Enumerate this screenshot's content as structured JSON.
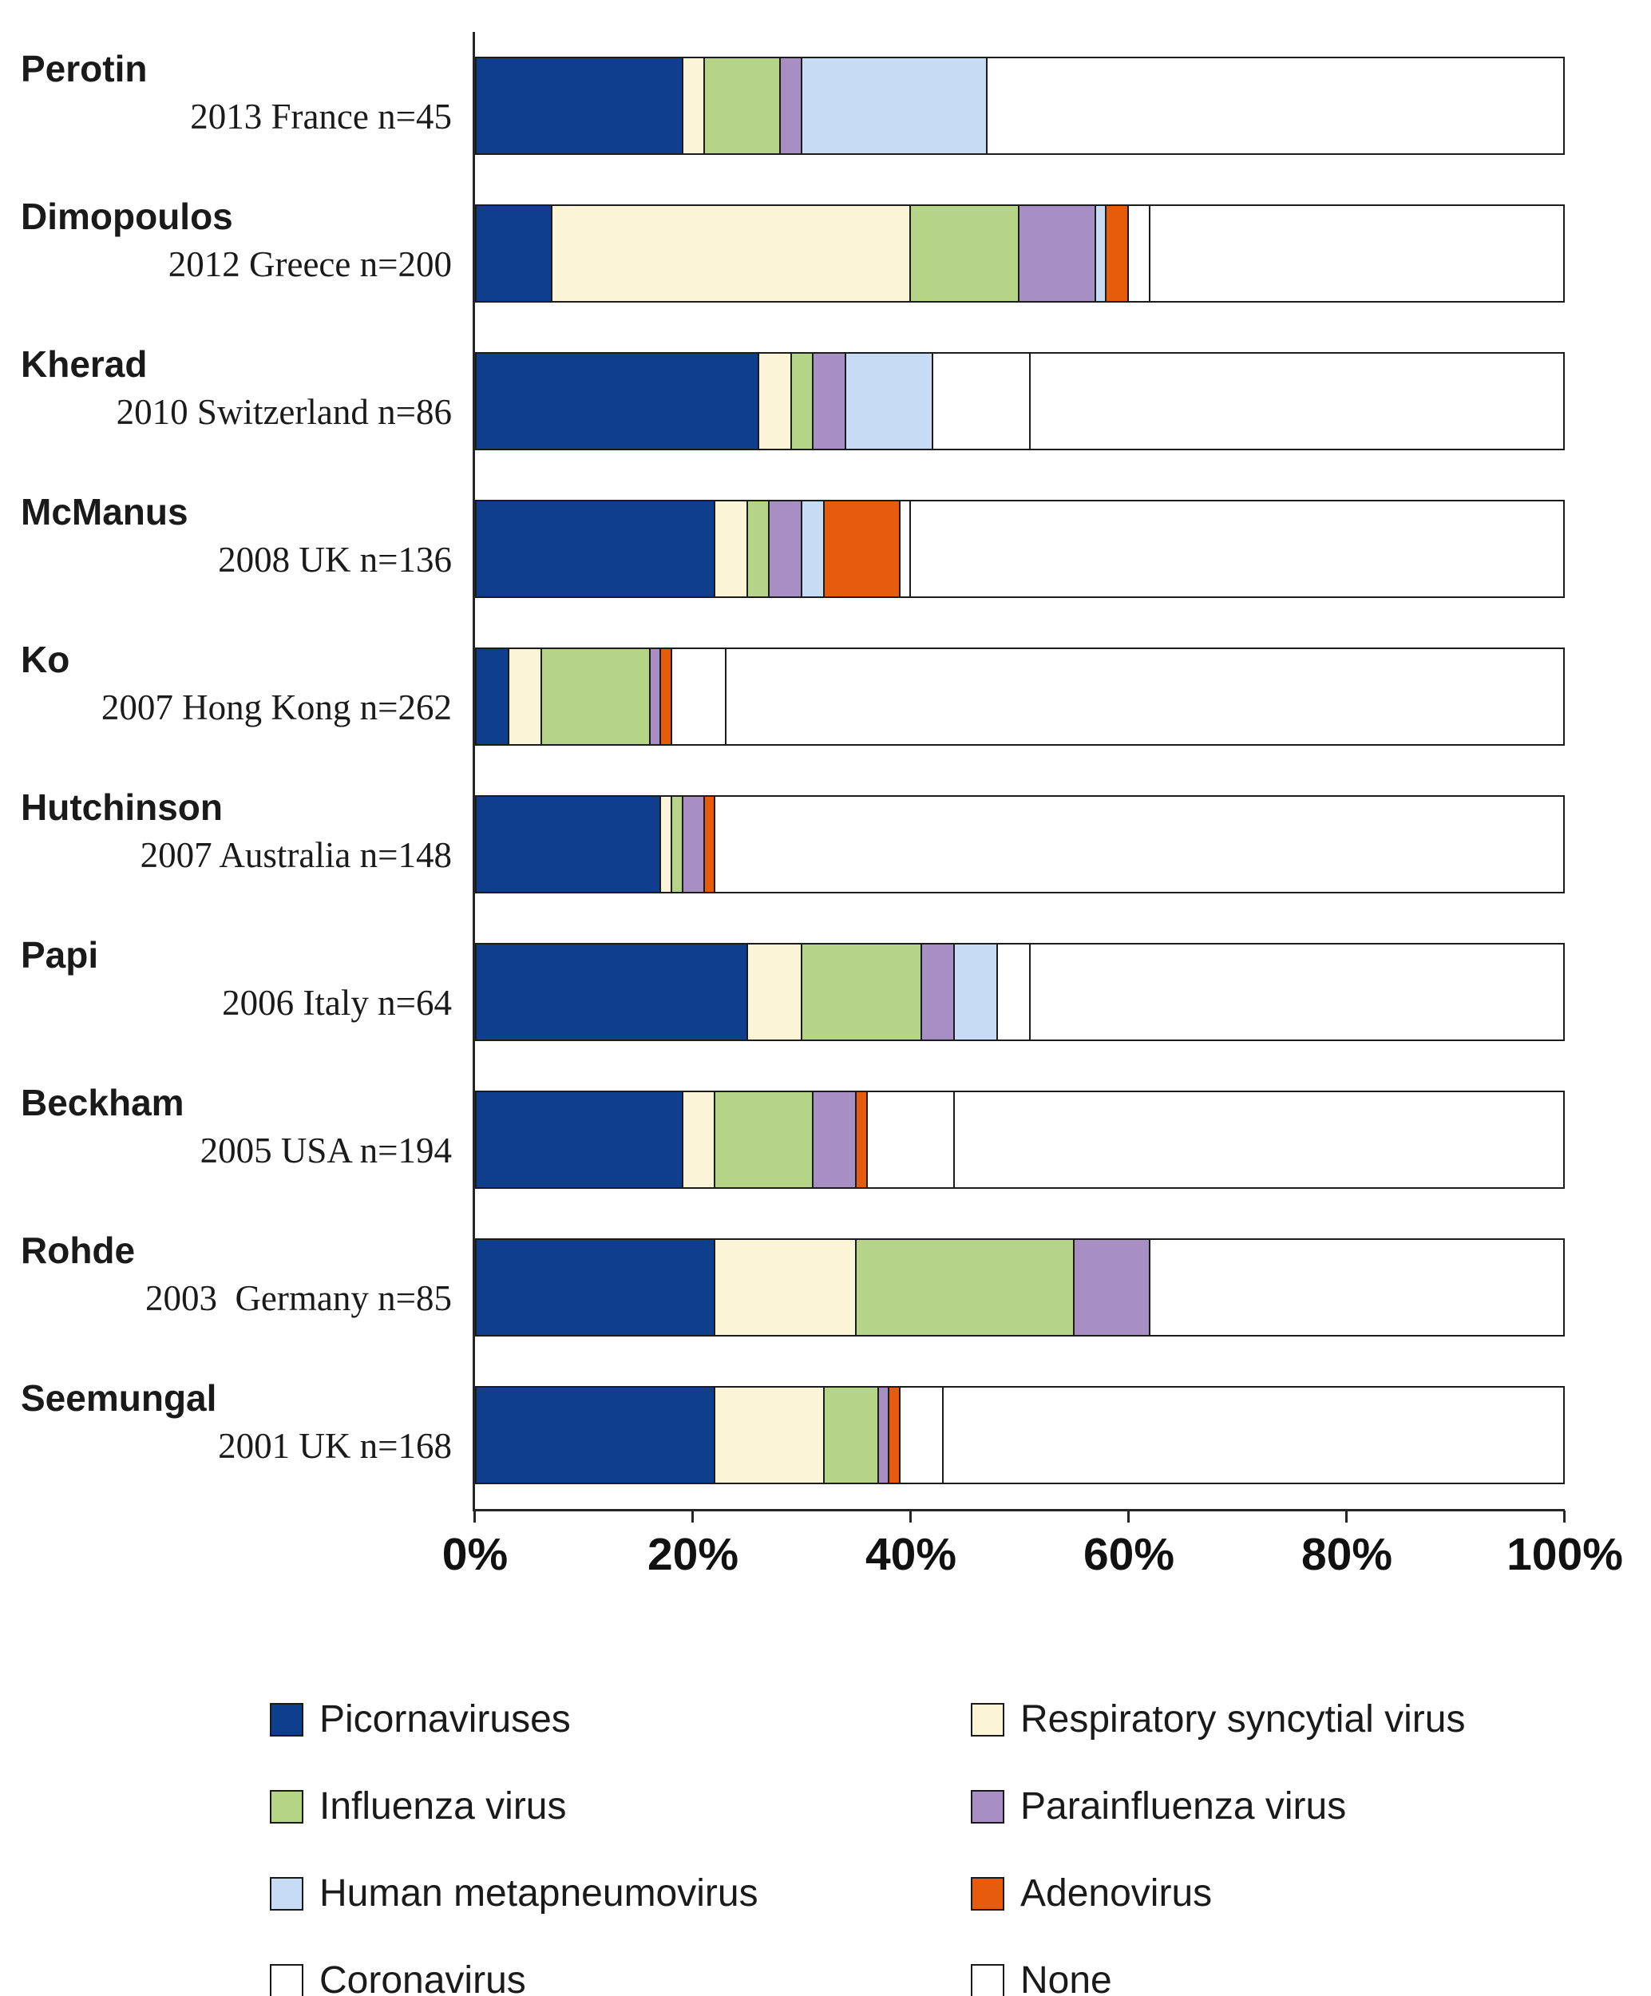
{
  "chart_data": {
    "type": "bar",
    "orientation": "horizontal",
    "stacked": true,
    "unit": "%",
    "xlim": [
      0,
      100
    ],
    "x_tick_labels": [
      "0%",
      "20%",
      "40%",
      "60%",
      "80%",
      "100%"
    ],
    "grid": false,
    "legend_position": "bottom",
    "series": [
      {
        "key": "picornaviruses",
        "label": "Picornaviruses",
        "color": "#0f3f8c"
      },
      {
        "key": "rsv",
        "label": "Respiratory syncytial virus",
        "color": "#fcf4d7"
      },
      {
        "key": "influenza",
        "label": "Influenza virus",
        "color": "#b6d488"
      },
      {
        "key": "parainfluenza",
        "label": "Parainfluenza virus",
        "color": "#a78fc3"
      },
      {
        "key": "hmpv",
        "label": "Human metapneumovirus",
        "color": "#c7dcf4"
      },
      {
        "key": "adenovirus",
        "label": "Adenovirus",
        "color": "#e65c0c"
      },
      {
        "key": "coronavirus",
        "label": "Coronavirus",
        "color": "#ffffff"
      },
      {
        "key": "none",
        "label": "None",
        "color": "#ffffff"
      }
    ],
    "studies": [
      {
        "name": "Perotin",
        "detail": "2013 France n=45",
        "values": [
          19,
          2,
          7,
          2,
          17,
          0,
          0,
          53
        ]
      },
      {
        "name": "Dimopoulos",
        "detail": "2012 Greece n=200",
        "values": [
          7,
          33,
          10,
          7,
          1,
          2,
          2,
          38
        ]
      },
      {
        "name": "Kherad",
        "detail": "2010 Switzerland n=86",
        "values": [
          26,
          3,
          2,
          3,
          8,
          0,
          9,
          49
        ]
      },
      {
        "name": "McManus",
        "detail": "2008 UK n=136",
        "values": [
          22,
          3,
          2,
          3,
          2,
          7,
          1,
          60
        ]
      },
      {
        "name": "Ko",
        "detail": "2007 Hong Kong n=262",
        "values": [
          3,
          3,
          10,
          1,
          0,
          1,
          5,
          77
        ]
      },
      {
        "name": "Hutchinson",
        "detail": "2007 Australia n=148",
        "values": [
          17,
          1,
          1,
          2,
          0,
          1,
          0,
          78
        ]
      },
      {
        "name": "Papi",
        "detail": "2006 Italy n=64",
        "values": [
          25,
          5,
          11,
          3,
          4,
          0,
          3,
          49
        ]
      },
      {
        "name": "Beckham",
        "detail": "2005 USA n=194",
        "values": [
          19,
          3,
          9,
          4,
          0,
          1,
          8,
          56
        ]
      },
      {
        "name": "Rohde",
        "detail": "2003  Germany n=85",
        "values": [
          22,
          13,
          20,
          7,
          0,
          0,
          0,
          38
        ]
      },
      {
        "name": "Seemungal",
        "detail": "2001 UK n=168",
        "values": [
          22,
          10,
          5,
          1,
          0,
          1,
          4,
          57
        ]
      }
    ]
  },
  "legend": {
    "items": [
      {
        "key": "picornaviruses",
        "label": "Picornaviruses",
        "color": "#0f3f8c"
      },
      {
        "key": "rsv",
        "label": "Respiratory syncytial virus",
        "color": "#fcf4d7"
      },
      {
        "key": "influenza",
        "label": "Influenza virus",
        "color": "#b6d488"
      },
      {
        "key": "parainfluenza",
        "label": "Parainfluenza virus",
        "color": "#a78fc3"
      },
      {
        "key": "hmpv",
        "label": "Human metapneumovirus",
        "color": "#c7dcf4"
      },
      {
        "key": "adenovirus",
        "label": "Adenovirus",
        "color": "#e65c0c"
      },
      {
        "key": "coronavirus",
        "label": "Coronavirus",
        "color": "#ffffff"
      },
      {
        "key": "none",
        "label": "None",
        "color": "#ffffff"
      }
    ]
  }
}
